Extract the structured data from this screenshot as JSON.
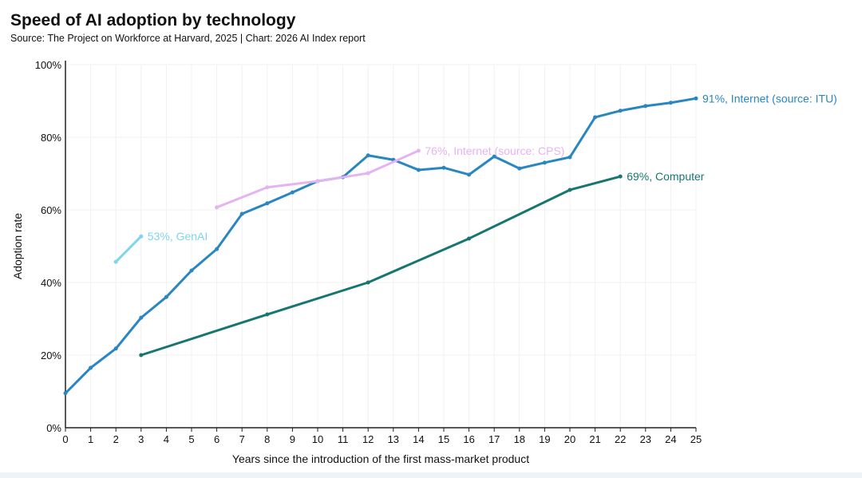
{
  "chart_data": {
    "type": "line",
    "title": "Speed of AI adoption by technology",
    "subtitle": "Source: The Project on Workforce at Harvard, 2025 | Chart: 2026 AI Index report",
    "xlabel": "Years since the introduction of the first mass-market product",
    "ylabel": "Adoption rate",
    "xlim": [
      0,
      25
    ],
    "ylim": [
      0,
      100
    ],
    "xticks": [
      "0",
      "1",
      "2",
      "3",
      "4",
      "5",
      "6",
      "7",
      "8",
      "9",
      "10",
      "11",
      "12",
      "13",
      "14",
      "15",
      "16",
      "17",
      "18",
      "19",
      "20",
      "21",
      "22",
      "23",
      "24",
      "25"
    ],
    "yticks": [
      "0%",
      "20%",
      "40%",
      "60%",
      "80%",
      "100%"
    ],
    "grid": true,
    "series": [
      {
        "name": "Internet (source: ITU)",
        "label": "91%, Internet (source: ITU)",
        "color": "#2a86bf",
        "x": [
          0,
          1,
          2,
          3,
          4,
          5,
          6,
          7,
          8,
          9,
          10,
          11,
          12,
          13,
          14,
          15,
          16,
          17,
          18,
          19,
          20,
          21,
          22,
          23,
          24,
          25
        ],
        "y": [
          9.5,
          16.5,
          21.8,
          30.3,
          36,
          43.3,
          49.2,
          58.9,
          61.8,
          64.8,
          67.9,
          69,
          75,
          73.8,
          71,
          71.6,
          69.7,
          74.7,
          71.4,
          73,
          74.5,
          85.5,
          87.3,
          88.6,
          89.5,
          90.7
        ]
      },
      {
        "name": "Internet (source: CPS)",
        "label": "76%, Internet (source: CPS)",
        "color": "#e6b3f2",
        "x": [
          6,
          8,
          10,
          12,
          14
        ],
        "y": [
          60.7,
          66.2,
          67.9,
          70.1,
          76.3
        ]
      },
      {
        "name": "GenAI",
        "label": "53%, GenAI",
        "color": "#7fd4ee",
        "x": [
          2,
          3
        ],
        "y": [
          45.7,
          52.7
        ]
      },
      {
        "name": "Computer",
        "label": "69%, Computer",
        "color": "#17766f",
        "x": [
          3,
          8,
          12,
          16,
          20,
          22
        ],
        "y": [
          20,
          31.2,
          40,
          52.1,
          65.5,
          69.2
        ]
      }
    ]
  }
}
